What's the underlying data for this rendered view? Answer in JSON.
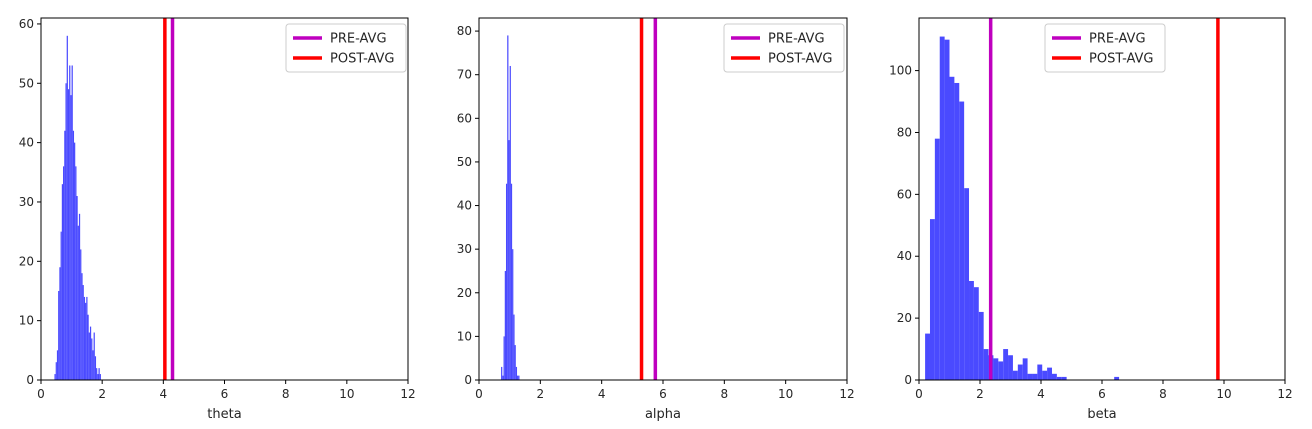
{
  "chart_data": [
    {
      "type": "histogram",
      "xlabel": "theta",
      "xlim": [
        0,
        12
      ],
      "ylim": [
        0,
        61
      ],
      "xticks": [
        0,
        2,
        4,
        6,
        8,
        10,
        12
      ],
      "yticks": [
        0,
        10,
        20,
        30,
        40,
        50,
        60
      ],
      "bin_width": 0.04,
      "hist_color": "#4040ff",
      "bins": [
        [
          0.44,
          1
        ],
        [
          0.48,
          3
        ],
        [
          0.52,
          5
        ],
        [
          0.56,
          15
        ],
        [
          0.6,
          19
        ],
        [
          0.64,
          25
        ],
        [
          0.68,
          33
        ],
        [
          0.72,
          36
        ],
        [
          0.76,
          42
        ],
        [
          0.8,
          50
        ],
        [
          0.84,
          58
        ],
        [
          0.88,
          49
        ],
        [
          0.92,
          53
        ],
        [
          0.96,
          48
        ],
        [
          1.0,
          53
        ],
        [
          1.04,
          42
        ],
        [
          1.08,
          40
        ],
        [
          1.12,
          36
        ],
        [
          1.16,
          31
        ],
        [
          1.2,
          26
        ],
        [
          1.24,
          28
        ],
        [
          1.28,
          22
        ],
        [
          1.32,
          18
        ],
        [
          1.36,
          16
        ],
        [
          1.4,
          14
        ],
        [
          1.44,
          13
        ],
        [
          1.48,
          14
        ],
        [
          1.52,
          11
        ],
        [
          1.56,
          8
        ],
        [
          1.6,
          9
        ],
        [
          1.64,
          7
        ],
        [
          1.68,
          5
        ],
        [
          1.72,
          8
        ],
        [
          1.76,
          4
        ],
        [
          1.8,
          2
        ],
        [
          1.84,
          1
        ],
        [
          1.88,
          2
        ],
        [
          1.92,
          1
        ]
      ],
      "vlines": [
        {
          "label": "PRE-AVG",
          "x": 4.3,
          "color": "#bf00bf"
        },
        {
          "label": "POST-AVG",
          "x": 4.05,
          "color": "#ff0000"
        }
      ],
      "legend": {
        "position": "upper-right",
        "entries": [
          {
            "label": "PRE-AVG",
            "color": "#bf00bf"
          },
          {
            "label": "POST-AVG",
            "color": "#ff0000"
          }
        ]
      }
    },
    {
      "type": "histogram",
      "xlabel": "alpha",
      "xlim": [
        0,
        12
      ],
      "ylim": [
        0,
        83
      ],
      "xticks": [
        0,
        2,
        4,
        6,
        8,
        10,
        12
      ],
      "yticks": [
        0,
        10,
        20,
        30,
        40,
        50,
        60,
        70,
        80
      ],
      "bin_width": 0.04,
      "hist_color": "#4040ff",
      "bins": [
        [
          0.72,
          3
        ],
        [
          0.76,
          1
        ],
        [
          0.8,
          10
        ],
        [
          0.84,
          25
        ],
        [
          0.88,
          45
        ],
        [
          0.92,
          79
        ],
        [
          0.96,
          55
        ],
        [
          1.0,
          72
        ],
        [
          1.04,
          45
        ],
        [
          1.08,
          30
        ],
        [
          1.12,
          15
        ],
        [
          1.16,
          8
        ],
        [
          1.2,
          3
        ],
        [
          1.24,
          1
        ],
        [
          1.28,
          1
        ]
      ],
      "vlines": [
        {
          "label": "PRE-AVG",
          "x": 5.75,
          "color": "#bf00bf"
        },
        {
          "label": "POST-AVG",
          "x": 5.3,
          "color": "#ff0000"
        }
      ],
      "legend": {
        "position": "upper-right",
        "entries": [
          {
            "label": "PRE-AVG",
            "color": "#bf00bf"
          },
          {
            "label": "POST-AVG",
            "color": "#ff0000"
          }
        ]
      }
    },
    {
      "type": "histogram",
      "xlabel": "beta",
      "xlim": [
        0,
        12
      ],
      "ylim": [
        0,
        117
      ],
      "xticks": [
        0,
        2,
        4,
        6,
        8,
        10,
        12
      ],
      "yticks": [
        0,
        20,
        40,
        60,
        80,
        100
      ],
      "bin_width": 0.16,
      "hist_color": "#4040ff",
      "bins": [
        [
          0.2,
          15
        ],
        [
          0.36,
          52
        ],
        [
          0.52,
          78
        ],
        [
          0.68,
          111
        ],
        [
          0.84,
          110
        ],
        [
          1.0,
          98
        ],
        [
          1.16,
          96
        ],
        [
          1.32,
          90
        ],
        [
          1.48,
          62
        ],
        [
          1.64,
          32
        ],
        [
          1.8,
          30
        ],
        [
          1.96,
          22
        ],
        [
          2.12,
          10
        ],
        [
          2.28,
          8
        ],
        [
          2.44,
          7
        ],
        [
          2.6,
          6
        ],
        [
          2.76,
          10
        ],
        [
          2.92,
          8
        ],
        [
          3.08,
          3
        ],
        [
          3.24,
          5
        ],
        [
          3.4,
          7
        ],
        [
          3.56,
          2
        ],
        [
          3.72,
          2
        ],
        [
          3.88,
          5
        ],
        [
          4.04,
          3
        ],
        [
          4.2,
          4
        ],
        [
          4.36,
          2
        ],
        [
          4.52,
          1
        ],
        [
          4.68,
          1
        ],
        [
          6.4,
          1
        ]
      ],
      "vlines": [
        {
          "label": "PRE-AVG",
          "x": 2.35,
          "color": "#bf00bf"
        },
        {
          "label": "POST-AVG",
          "x": 9.8,
          "color": "#ff0000"
        }
      ],
      "legend": {
        "position": "upper-center",
        "entries": [
          {
            "label": "PRE-AVG",
            "color": "#bf00bf"
          },
          {
            "label": "POST-AVG",
            "color": "#ff0000"
          }
        ]
      }
    }
  ]
}
